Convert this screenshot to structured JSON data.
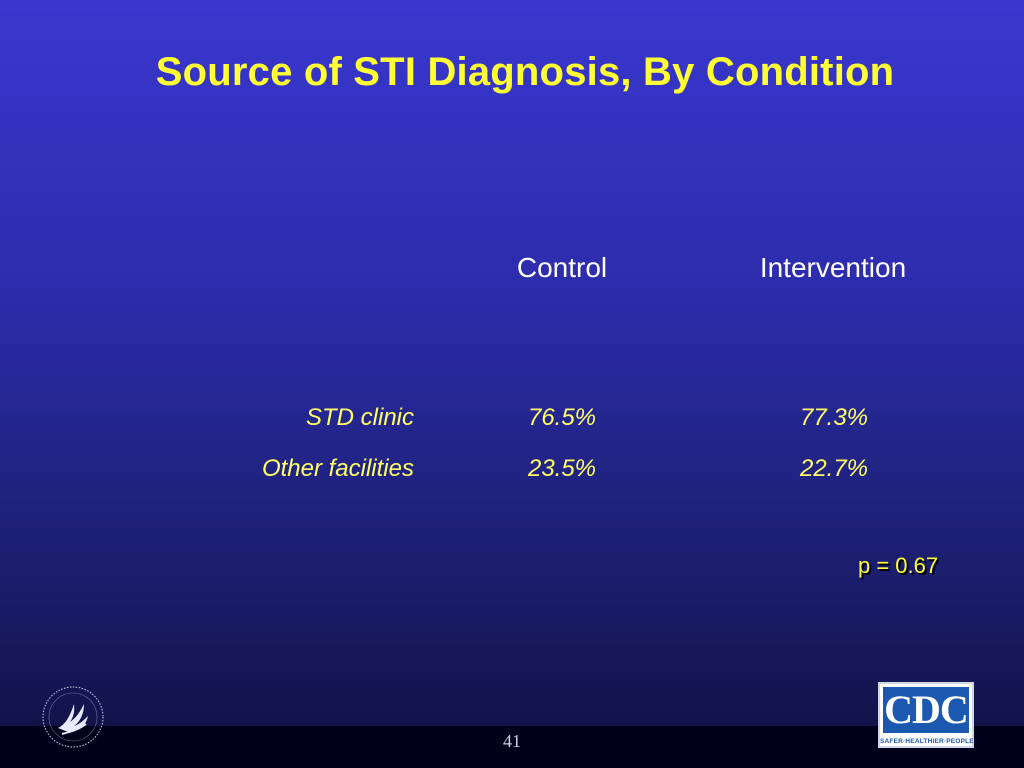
{
  "slide": {
    "title": "Source of STI Diagnosis, By Condition",
    "page_number": "41",
    "p_value": "p = 0.67"
  },
  "table": {
    "columns": [
      "Control",
      "Intervention"
    ],
    "rows": [
      {
        "label": "STD clinic",
        "control": "76.5%",
        "intervention": "77.3%"
      },
      {
        "label": "Other facilities",
        "control": "23.5%",
        "intervention": "22.7%"
      }
    ]
  },
  "logos": {
    "left": "hhs-eagle-seal-icon",
    "right": {
      "text": "CDC",
      "tagline": "SAFER·HEALTHIER·PEOPLE"
    }
  },
  "colors": {
    "title": "#ffff33",
    "cell_text": "#ffff66",
    "header_text": "#ffffff",
    "background_top": "#3a37cf",
    "background_bottom": "#101040"
  }
}
